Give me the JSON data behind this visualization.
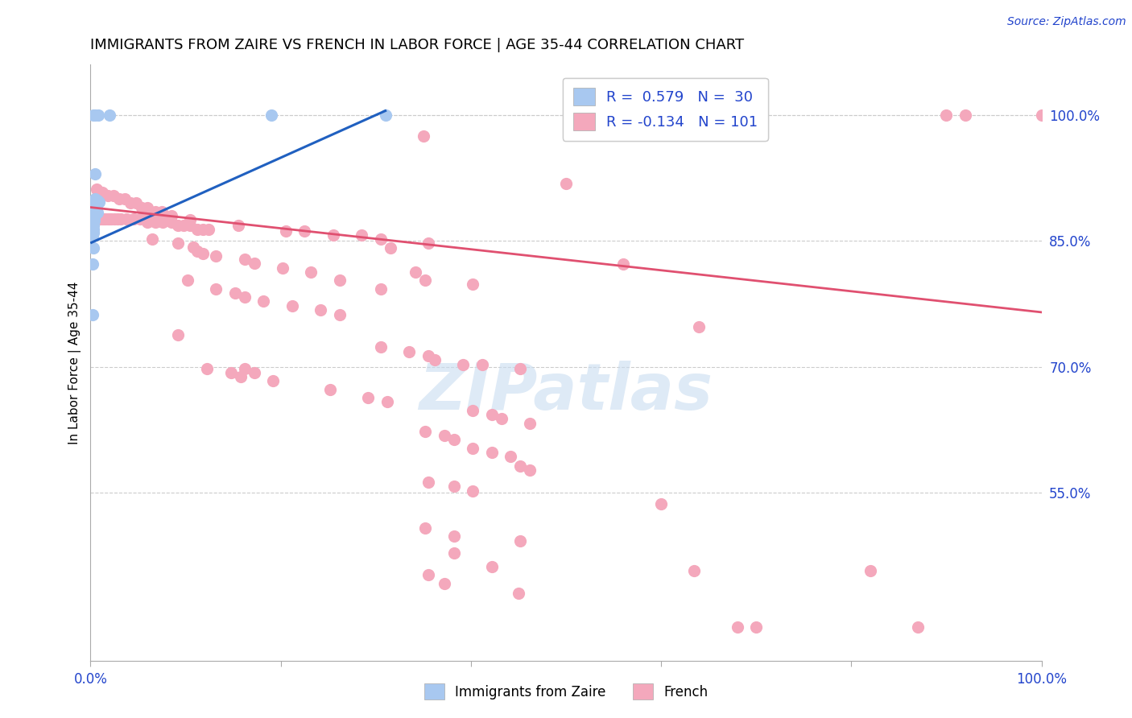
{
  "title": "IMMIGRANTS FROM ZAIRE VS FRENCH IN LABOR FORCE | AGE 35-44 CORRELATION CHART",
  "source": "Source: ZipAtlas.com",
  "ylabel": "In Labor Force | Age 35-44",
  "xlim": [
    0.0,
    1.0
  ],
  "ylim": [
    0.35,
    1.06
  ],
  "x_ticks": [
    0.0,
    0.2,
    0.4,
    0.6,
    0.8,
    1.0
  ],
  "x_tick_labels": [
    "0.0%",
    "",
    "",
    "",
    "",
    "100.0%"
  ],
  "y_tick_labels_right": [
    "100.0%",
    "85.0%",
    "70.0%",
    "55.0%"
  ],
  "y_tick_positions_right": [
    1.0,
    0.85,
    0.7,
    0.55
  ],
  "watermark": "ZIPatlas",
  "legend_blue_label": "R =  0.579   N =  30",
  "legend_pink_label": "R = -0.134   N = 101",
  "blue_color": "#A8C8F0",
  "pink_color": "#F4A8BC",
  "trendline_blue_color": "#2060C0",
  "trendline_pink_color": "#E05070",
  "blue_scatter": [
    [
      0.003,
      1.0
    ],
    [
      0.005,
      1.0
    ],
    [
      0.008,
      1.0
    ],
    [
      0.02,
      1.0
    ],
    [
      0.19,
      1.0
    ],
    [
      0.31,
      1.0
    ],
    [
      0.005,
      0.93
    ],
    [
      0.003,
      0.895
    ],
    [
      0.005,
      0.9
    ],
    [
      0.007,
      0.898
    ],
    [
      0.009,
      0.896
    ],
    [
      0.003,
      0.888
    ],
    [
      0.005,
      0.886
    ],
    [
      0.007,
      0.884
    ],
    [
      0.003,
      0.88
    ],
    [
      0.005,
      0.882
    ],
    [
      0.003,
      0.876
    ],
    [
      0.004,
      0.878
    ],
    [
      0.003,
      0.872
    ],
    [
      0.004,
      0.874
    ],
    [
      0.003,
      0.868
    ],
    [
      0.003,
      0.864
    ],
    [
      0.003,
      0.86
    ],
    [
      0.002,
      0.856
    ],
    [
      0.003,
      0.842
    ],
    [
      0.002,
      0.822
    ],
    [
      0.002,
      0.762
    ]
  ],
  "blue_trendline": [
    [
      0.001,
      0.848
    ],
    [
      0.31,
      1.005
    ]
  ],
  "pink_scatter": [
    [
      0.006,
      0.876
    ],
    [
      0.008,
      0.876
    ],
    [
      0.01,
      0.876
    ],
    [
      0.012,
      0.876
    ],
    [
      0.014,
      0.876
    ],
    [
      0.016,
      0.876
    ],
    [
      0.018,
      0.876
    ],
    [
      0.02,
      0.876
    ],
    [
      0.022,
      0.876
    ],
    [
      0.025,
      0.876
    ],
    [
      0.028,
      0.876
    ],
    [
      0.032,
      0.876
    ],
    [
      0.038,
      0.876
    ],
    [
      0.045,
      0.876
    ],
    [
      0.052,
      0.876
    ],
    [
      0.06,
      0.876
    ],
    [
      0.068,
      0.876
    ],
    [
      0.075,
      0.876
    ],
    [
      0.06,
      0.872
    ],
    [
      0.068,
      0.872
    ],
    [
      0.076,
      0.872
    ],
    [
      0.085,
      0.872
    ],
    [
      0.092,
      0.868
    ],
    [
      0.098,
      0.868
    ],
    [
      0.105,
      0.868
    ],
    [
      0.112,
      0.864
    ],
    [
      0.118,
      0.864
    ],
    [
      0.124,
      0.864
    ],
    [
      0.006,
      0.912
    ],
    [
      0.012,
      0.908
    ],
    [
      0.018,
      0.904
    ],
    [
      0.024,
      0.904
    ],
    [
      0.03,
      0.9
    ],
    [
      0.036,
      0.9
    ],
    [
      0.042,
      0.895
    ],
    [
      0.048,
      0.895
    ],
    [
      0.054,
      0.89
    ],
    [
      0.06,
      0.89
    ],
    [
      0.068,
      0.885
    ],
    [
      0.075,
      0.885
    ],
    [
      0.085,
      0.88
    ],
    [
      0.105,
      0.875
    ],
    [
      0.155,
      0.868
    ],
    [
      0.205,
      0.862
    ],
    [
      0.255,
      0.857
    ],
    [
      0.285,
      0.857
    ],
    [
      0.225,
      0.862
    ],
    [
      0.305,
      0.852
    ],
    [
      0.355,
      0.847
    ],
    [
      0.315,
      0.842
    ],
    [
      0.065,
      0.852
    ],
    [
      0.092,
      0.847
    ],
    [
      0.108,
      0.843
    ],
    [
      0.112,
      0.838
    ],
    [
      0.118,
      0.835
    ],
    [
      0.132,
      0.832
    ],
    [
      0.162,
      0.828
    ],
    [
      0.172,
      0.823
    ],
    [
      0.202,
      0.818
    ],
    [
      0.232,
      0.813
    ],
    [
      0.352,
      0.803
    ],
    [
      0.402,
      0.798
    ],
    [
      0.262,
      0.803
    ],
    [
      0.342,
      0.813
    ],
    [
      0.305,
      0.793
    ],
    [
      0.102,
      0.803
    ],
    [
      0.132,
      0.793
    ],
    [
      0.152,
      0.788
    ],
    [
      0.162,
      0.783
    ],
    [
      0.182,
      0.778
    ],
    [
      0.212,
      0.773
    ],
    [
      0.242,
      0.768
    ],
    [
      0.262,
      0.762
    ],
    [
      0.305,
      0.724
    ],
    [
      0.335,
      0.718
    ],
    [
      0.355,
      0.713
    ],
    [
      0.392,
      0.703
    ],
    [
      0.412,
      0.703
    ],
    [
      0.452,
      0.698
    ],
    [
      0.362,
      0.708
    ],
    [
      0.122,
      0.698
    ],
    [
      0.148,
      0.693
    ],
    [
      0.158,
      0.688
    ],
    [
      0.192,
      0.683
    ],
    [
      0.252,
      0.673
    ],
    [
      0.292,
      0.663
    ],
    [
      0.312,
      0.658
    ],
    [
      0.402,
      0.648
    ],
    [
      0.422,
      0.643
    ],
    [
      0.432,
      0.638
    ],
    [
      0.462,
      0.633
    ],
    [
      0.352,
      0.623
    ],
    [
      0.372,
      0.618
    ],
    [
      0.382,
      0.613
    ],
    [
      0.402,
      0.603
    ],
    [
      0.422,
      0.598
    ],
    [
      0.442,
      0.593
    ],
    [
      0.452,
      0.582
    ],
    [
      0.462,
      0.577
    ],
    [
      0.355,
      0.563
    ],
    [
      0.382,
      0.558
    ],
    [
      0.402,
      0.552
    ],
    [
      0.352,
      0.508
    ],
    [
      0.382,
      0.498
    ],
    [
      0.452,
      0.493
    ],
    [
      0.382,
      0.478
    ],
    [
      0.422,
      0.462
    ],
    [
      0.355,
      0.452
    ],
    [
      0.372,
      0.442
    ],
    [
      0.6,
      0.537
    ],
    [
      0.635,
      0.457
    ],
    [
      0.82,
      0.457
    ],
    [
      0.9,
      1.0
    ],
    [
      0.92,
      1.0
    ],
    [
      1.0,
      1.0
    ],
    [
      0.68,
      0.39
    ],
    [
      0.7,
      0.39
    ],
    [
      0.87,
      0.39
    ],
    [
      0.45,
      0.43
    ],
    [
      0.35,
      0.975
    ],
    [
      0.5,
      0.918
    ],
    [
      0.56,
      0.822
    ],
    [
      0.64,
      0.748
    ],
    [
      0.092,
      0.738
    ],
    [
      0.162,
      0.698
    ],
    [
      0.172,
      0.693
    ]
  ],
  "pink_trendline": [
    [
      0.0,
      0.89
    ],
    [
      1.0,
      0.765
    ]
  ]
}
